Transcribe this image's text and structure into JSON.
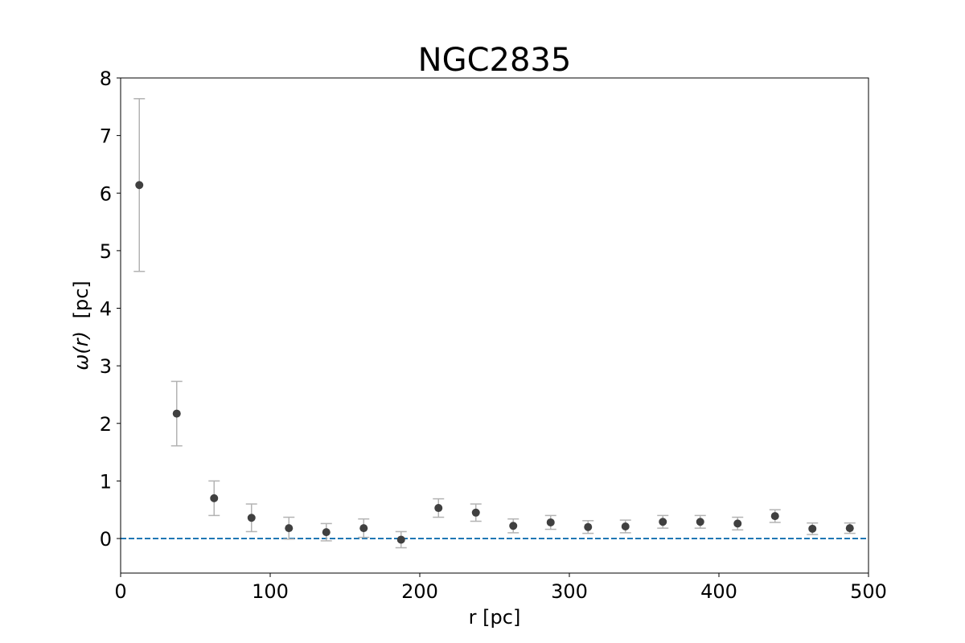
{
  "chart_data": {
    "type": "scatter",
    "title": "NGC2835",
    "xlabel": "r [pc]",
    "ylabel_symbol": "ω(r)",
    "ylabel_unit": "[pc]",
    "xlim": [
      0,
      500
    ],
    "ylim": [
      -0.6,
      8
    ],
    "xticks": [
      0,
      100,
      200,
      300,
      400,
      500
    ],
    "yticks": [
      0,
      1,
      2,
      3,
      4,
      5,
      6,
      7,
      8
    ],
    "grid": false,
    "reference_line": {
      "y": 0,
      "style": "dashed",
      "color": "#1f77b4"
    },
    "series": [
      {
        "marker_color": "#404040",
        "errorbar_color": "#b3b3b3",
        "points": [
          {
            "x": 12.5,
            "y": 6.14,
            "err": 1.5
          },
          {
            "x": 37.5,
            "y": 2.17,
            "err": 0.56
          },
          {
            "x": 62.5,
            "y": 0.7,
            "err": 0.3
          },
          {
            "x": 87.5,
            "y": 0.36,
            "err": 0.24
          },
          {
            "x": 112.5,
            "y": 0.18,
            "err": 0.19
          },
          {
            "x": 137.5,
            "y": 0.11,
            "err": 0.15
          },
          {
            "x": 162.5,
            "y": 0.18,
            "err": 0.16
          },
          {
            "x": 187.5,
            "y": -0.02,
            "err": 0.14
          },
          {
            "x": 212.5,
            "y": 0.53,
            "err": 0.16
          },
          {
            "x": 237.5,
            "y": 0.45,
            "err": 0.15
          },
          {
            "x": 262.5,
            "y": 0.22,
            "err": 0.12
          },
          {
            "x": 287.5,
            "y": 0.28,
            "err": 0.12
          },
          {
            "x": 312.5,
            "y": 0.2,
            "err": 0.11
          },
          {
            "x": 337.5,
            "y": 0.21,
            "err": 0.11
          },
          {
            "x": 362.5,
            "y": 0.29,
            "err": 0.11
          },
          {
            "x": 387.5,
            "y": 0.29,
            "err": 0.11
          },
          {
            "x": 412.5,
            "y": 0.26,
            "err": 0.11
          },
          {
            "x": 437.5,
            "y": 0.39,
            "err": 0.11
          },
          {
            "x": 462.5,
            "y": 0.17,
            "err": 0.1
          },
          {
            "x": 487.5,
            "y": 0.18,
            "err": 0.09
          }
        ]
      }
    ]
  }
}
